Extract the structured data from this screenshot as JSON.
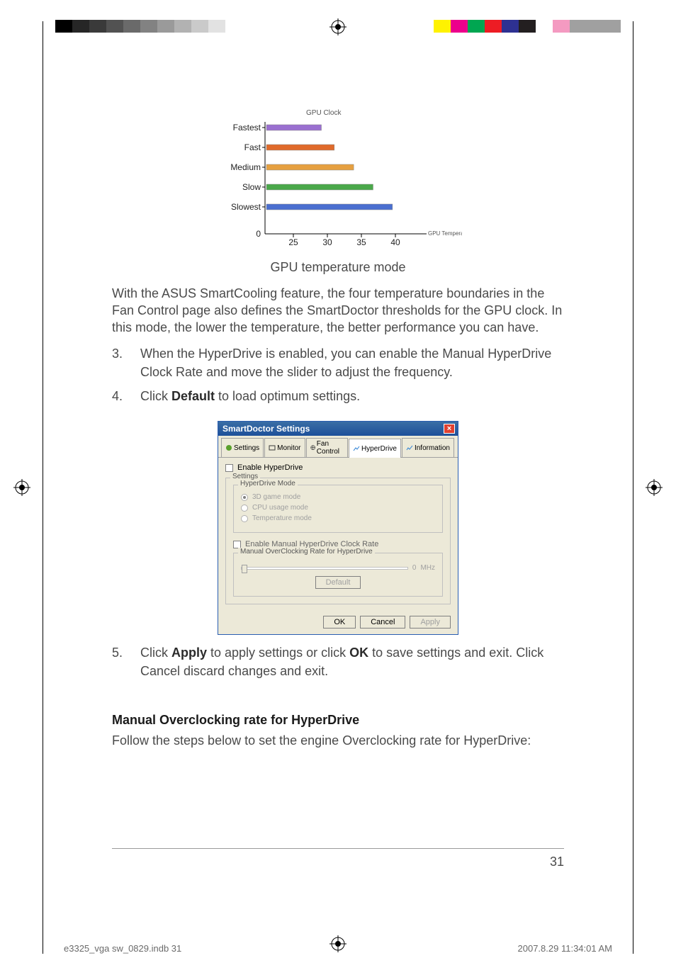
{
  "print_marks": {
    "gray_swatches": [
      "#000000",
      "#262626",
      "#3a3a3a",
      "#525252",
      "#6a6a6a",
      "#828282",
      "#9a9a9a",
      "#b2b2b2",
      "#cacaca",
      "#e2e2e2",
      "#ffffff",
      "#ffffff"
    ],
    "color_swatches": [
      "#ffffff",
      "#fff200",
      "#ec008c",
      "#00a651",
      "#ed1c24",
      "#2e3192",
      "#231f20",
      "#ffffff",
      "#f49ac1",
      "#a0a0a0",
      "#a0a0a0",
      "#a0a0a0"
    ]
  },
  "chart": {
    "title": "GPU Clock",
    "y_labels": [
      "Fastest",
      "Fast",
      "Medium",
      "Slow",
      "Slowest",
      "0"
    ],
    "x_ticks": [
      "25",
      "30",
      "35",
      "40"
    ],
    "x_axis_label": "GPU Temperature (C°)",
    "bars": [
      {
        "y": 5,
        "x_end": 34,
        "color": "#9a6fd0"
      },
      {
        "y": 4,
        "x_end": 42,
        "color": "#e06a2a"
      },
      {
        "y": 3,
        "x_end": 54,
        "color": "#e6a040"
      },
      {
        "y": 2,
        "x_end": 66,
        "color": "#4aa84a"
      },
      {
        "y": 1,
        "x_end": 78,
        "color": "#4a6fd0"
      }
    ],
    "caption": "GPU temperature mode"
  },
  "body": {
    "para1": "With the ASUS SmartCooling feature, the four temperature boundaries in the Fan Control page also defines the SmartDoctor thresholds for the GPU clock. In this mode, the lower the temperature, the better performance you can have.",
    "step3_n": "3.",
    "step3": "When the HyperDrive is enabled, you can enable the Manual HyperDrive Clock Rate and move the slider to adjust the frequency.",
    "step4_n": "4.",
    "step4_a": "Click ",
    "step4_b": "Default",
    "step4_c": " to load optimum settings.",
    "step5_n": "5.",
    "step5_a": "Click ",
    "step5_b": "Apply",
    "step5_c": " to apply settings or click ",
    "step5_d": "OK",
    "step5_e": " to save settings and exit. Click Cancel discard changes and exit.",
    "section_h": "Manual Overclocking rate for HyperDrive",
    "section_p": "Follow the steps below to set the engine Overclocking rate for HyperDrive:"
  },
  "dialog": {
    "title": "SmartDoctor Settings",
    "close": "×",
    "tabs": {
      "settings": "Settings",
      "monitor": "Monitor",
      "fan": "Fan Control",
      "hyper": "HyperDrive",
      "info": "Information"
    },
    "tab_icon_colors": {
      "settings": "#5aa02c",
      "monitor": "#3a3a3a",
      "fan": "#3a3a3a",
      "hyper": "#2a7fd4",
      "info": "#2a7fd4"
    },
    "enable_hd": "Enable HyperDrive",
    "grp_settings": "Settings",
    "grp_mode": "HyperDrive Mode",
    "r1": "3D game mode",
    "r2": "CPU usage mode",
    "r3": "Temperature mode",
    "enable_manual": "Enable Manual HyperDrive Clock Rate",
    "grp_manual": "Manual OverClocking Rate for HyperDrive",
    "mhz_val": "0",
    "mhz_unit": "MHz",
    "default_btn": "Default",
    "ok": "OK",
    "cancel": "Cancel",
    "apply": "Apply"
  },
  "footer": {
    "pagenum": "31",
    "file": "e3325_vga sw_0829.indb   31",
    "date": "2007.8.29   11:34:01 AM"
  }
}
